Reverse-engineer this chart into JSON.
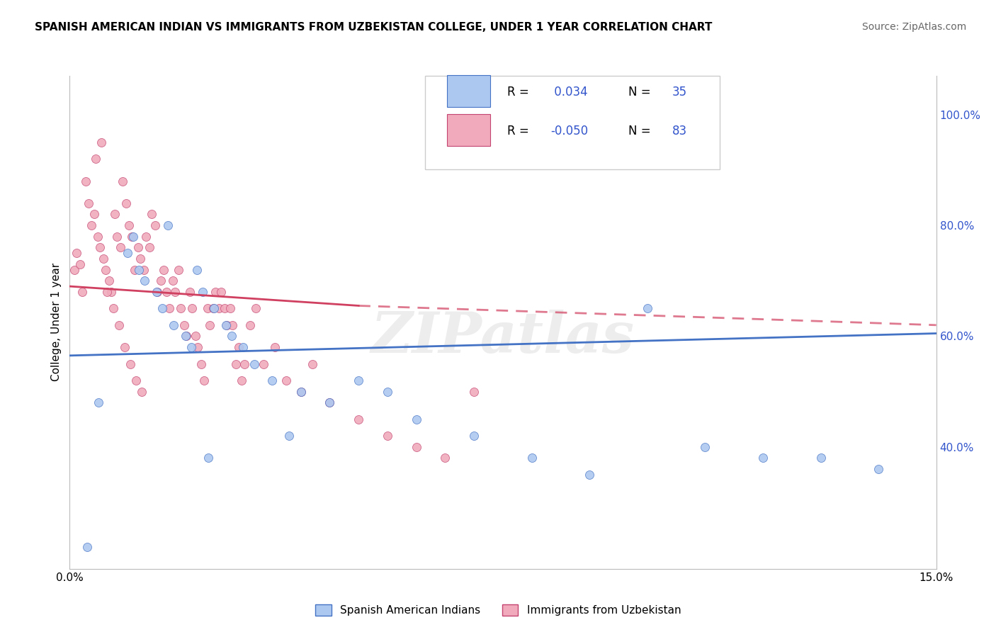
{
  "title": "SPANISH AMERICAN INDIAN VS IMMIGRANTS FROM UZBEKISTAN COLLEGE, UNDER 1 YEAR CORRELATION CHART",
  "source": "Source: ZipAtlas.com",
  "ylabel": "College, Under 1 year",
  "xlim": [
    0.0,
    15.0
  ],
  "ylim": [
    18.0,
    107.0
  ],
  "yticks": [
    40.0,
    60.0,
    80.0,
    100.0
  ],
  "ytick_labels": [
    "40.0%",
    "60.0%",
    "80.0%",
    "100.0%"
  ],
  "xtick_labels": [
    "0.0%",
    "15.0%"
  ],
  "color_blue_fill": "#adc8f0",
  "color_blue_edge": "#4472c4",
  "color_pink_fill": "#f0aabb",
  "color_pink_edge": "#c44472",
  "color_trend_blue": "#4472c4",
  "color_trend_pink": "#d04060",
  "color_rn": "#3355cc",
  "watermark": "ZIPatlas",
  "series1_label": "Spanish American Indians",
  "series2_label": "Immigrants from Uzbekistan",
  "blue_x": [
    0.3,
    0.5,
    1.0,
    1.1,
    1.2,
    1.3,
    1.5,
    1.6,
    1.7,
    1.8,
    2.0,
    2.1,
    2.2,
    2.3,
    2.4,
    2.5,
    2.7,
    2.8,
    3.0,
    3.2,
    3.5,
    3.8,
    4.0,
    4.5,
    5.0,
    5.5,
    6.0,
    7.0,
    8.0,
    9.0,
    10.0,
    11.0,
    12.0,
    13.0,
    14.0
  ],
  "blue_y": [
    22.0,
    48.0,
    75.0,
    78.0,
    72.0,
    70.0,
    68.0,
    65.0,
    80.0,
    62.0,
    60.0,
    58.0,
    72.0,
    68.0,
    38.0,
    65.0,
    62.0,
    60.0,
    58.0,
    55.0,
    52.0,
    42.0,
    50.0,
    48.0,
    52.0,
    50.0,
    45.0,
    42.0,
    38.0,
    35.0,
    65.0,
    40.0,
    38.0,
    38.0,
    36.0
  ],
  "pink_x": [
    0.08,
    0.12,
    0.18,
    0.22,
    0.28,
    0.32,
    0.38,
    0.42,
    0.48,
    0.52,
    0.58,
    0.62,
    0.68,
    0.72,
    0.78,
    0.82,
    0.88,
    0.92,
    0.98,
    1.02,
    1.08,
    1.12,
    1.18,
    1.22,
    1.28,
    1.32,
    1.38,
    1.42,
    1.48,
    1.52,
    1.58,
    1.62,
    1.68,
    1.72,
    1.78,
    1.82,
    1.88,
    1.92,
    1.98,
    2.02,
    2.08,
    2.12,
    2.18,
    2.22,
    2.28,
    2.32,
    2.38,
    2.42,
    2.48,
    2.52,
    2.58,
    2.62,
    2.68,
    2.72,
    2.78,
    2.82,
    2.88,
    2.92,
    2.98,
    3.02,
    3.12,
    3.22,
    3.35,
    3.55,
    3.75,
    4.0,
    4.2,
    4.5,
    5.0,
    5.5,
    6.0,
    6.5,
    7.0,
    0.45,
    0.55,
    0.65,
    0.75,
    0.85,
    0.95,
    1.05,
    1.15,
    1.25
  ],
  "pink_y": [
    72.0,
    75.0,
    73.0,
    68.0,
    88.0,
    84.0,
    80.0,
    82.0,
    78.0,
    76.0,
    74.0,
    72.0,
    70.0,
    68.0,
    82.0,
    78.0,
    76.0,
    88.0,
    84.0,
    80.0,
    78.0,
    72.0,
    76.0,
    74.0,
    72.0,
    78.0,
    76.0,
    82.0,
    80.0,
    68.0,
    70.0,
    72.0,
    68.0,
    65.0,
    70.0,
    68.0,
    72.0,
    65.0,
    62.0,
    60.0,
    68.0,
    65.0,
    60.0,
    58.0,
    55.0,
    52.0,
    65.0,
    62.0,
    65.0,
    68.0,
    65.0,
    68.0,
    65.0,
    62.0,
    65.0,
    62.0,
    55.0,
    58.0,
    52.0,
    55.0,
    62.0,
    65.0,
    55.0,
    58.0,
    52.0,
    50.0,
    55.0,
    48.0,
    45.0,
    42.0,
    40.0,
    38.0,
    50.0,
    92.0,
    95.0,
    68.0,
    65.0,
    62.0,
    58.0,
    55.0,
    52.0,
    50.0
  ]
}
